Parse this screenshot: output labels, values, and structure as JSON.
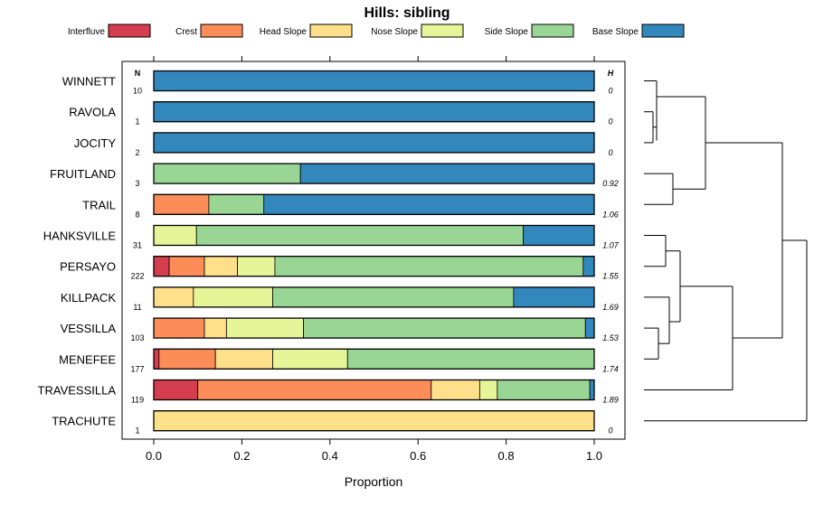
{
  "chart_data": {
    "type": "bar",
    "stacked": true,
    "orientation": "horizontal",
    "title": "Hills: sibling",
    "xlabel": "Proportion",
    "ylabel": "",
    "xlim": [
      0,
      1
    ],
    "x_ticks": [
      "0.0",
      "0.2",
      "0.4",
      "0.6",
      "0.8",
      "1.0"
    ],
    "n_header": "N",
    "h_header": "H",
    "legend": [
      {
        "name": "Interfluve",
        "color": "#d53e4f"
      },
      {
        "name": "Crest",
        "color": "#fc8d59"
      },
      {
        "name": "Head Slope",
        "color": "#fee08b"
      },
      {
        "name": "Nose Slope",
        "color": "#e6f598"
      },
      {
        "name": "Side Slope",
        "color": "#99d594"
      },
      {
        "name": "Base Slope",
        "color": "#3288bd"
      }
    ],
    "categories": [
      "WINNETT",
      "RAVOLA",
      "JOCITY",
      "FRUITLAND",
      "TRAIL",
      "HANKSVILLE",
      "PERSAYO",
      "KILLPACK",
      "VESSILLA",
      "MENEFEE",
      "TRAVESSILLA",
      "TRACHUTE"
    ],
    "n": [
      "10",
      "1",
      "2",
      "3",
      "8",
      "31",
      "222",
      "11",
      "103",
      "177",
      "119",
      "1"
    ],
    "h": [
      "0",
      "0",
      "0",
      "0.92",
      "1.06",
      "1.07",
      "1.55",
      "1.69",
      "1.53",
      "1.74",
      "1.89",
      "0"
    ],
    "series": [
      {
        "name": "Interfluve",
        "values": [
          0,
          0,
          0,
          0,
          0,
          0,
          0.035,
          0,
          0,
          0.012,
          0.1,
          0
        ]
      },
      {
        "name": "Crest",
        "values": [
          0,
          0,
          0,
          0,
          0.125,
          0,
          0.08,
          0,
          0.115,
          0.128,
          0.53,
          0
        ]
      },
      {
        "name": "Head Slope",
        "values": [
          0,
          0,
          0,
          0,
          0,
          0,
          0.075,
          0.09,
          0.05,
          0.13,
          0.11,
          1.0
        ]
      },
      {
        "name": "Nose Slope",
        "values": [
          0,
          0,
          0,
          0,
          0,
          0.097,
          0.085,
          0.18,
          0.175,
          0.17,
          0.04,
          0
        ]
      },
      {
        "name": "Side Slope",
        "values": [
          0,
          0,
          0,
          0.333,
          0.125,
          0.742,
          0.7,
          0.547,
          0.64,
          0.56,
          0.21,
          0
        ]
      },
      {
        "name": "Base Slope",
        "values": [
          1.0,
          1.0,
          1.0,
          0.667,
          0.75,
          0.161,
          0.025,
          0.183,
          0.02,
          0,
          0.01,
          0
        ]
      }
    ],
    "dendrogram": "hierarchical clustering of the 12 series (drawn at right)"
  }
}
